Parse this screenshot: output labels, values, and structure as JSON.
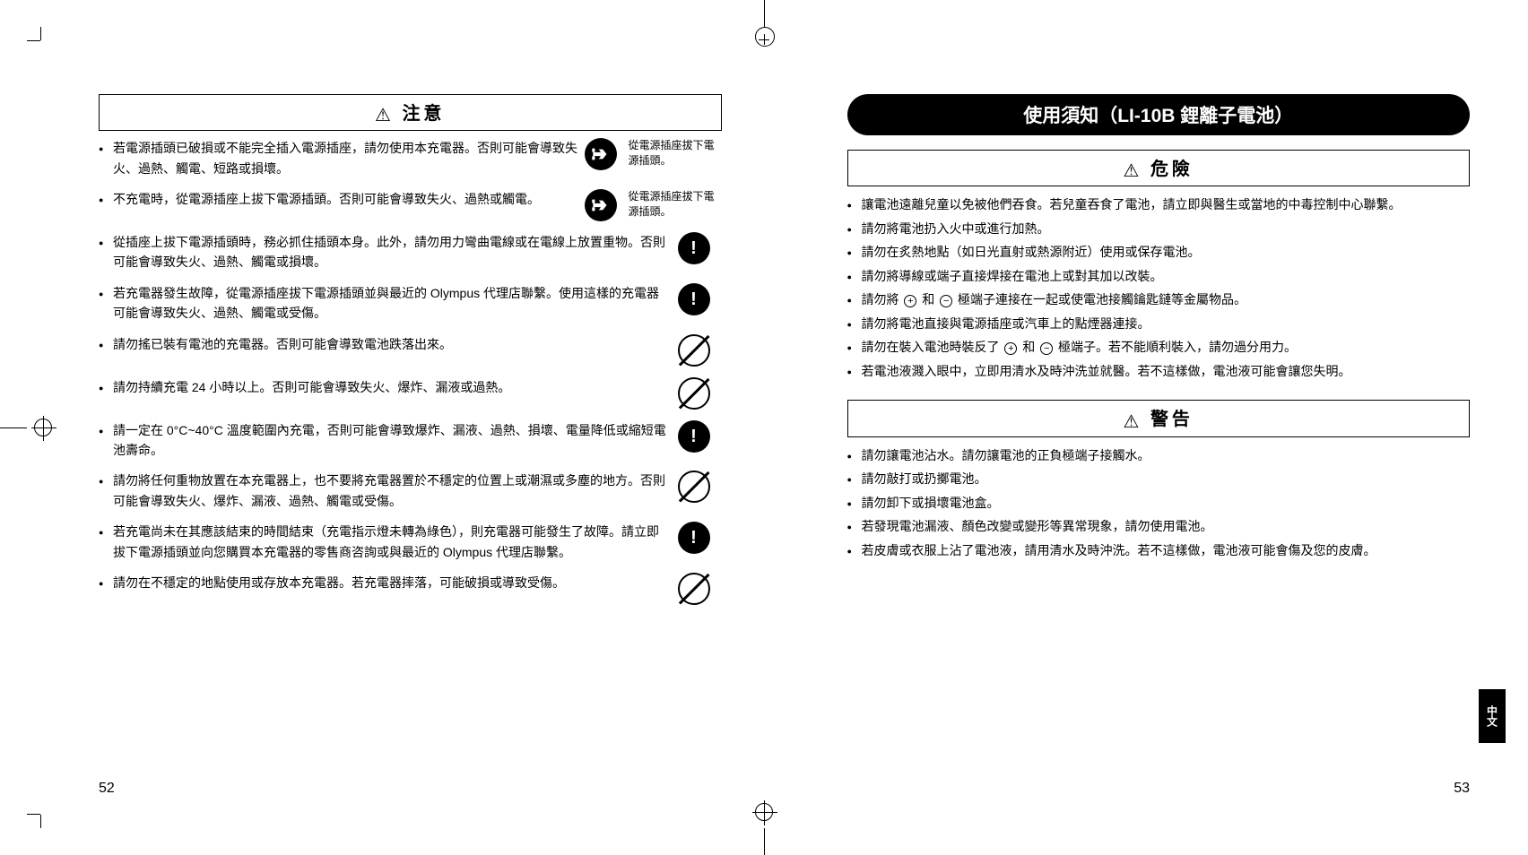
{
  "left_page": {
    "caution_title": "注意",
    "items": [
      {
        "text": "若電源插頭已破損或不能完全插入電源插座，請勿使用本充電器。否則可能會導致失火、過熱、觸電、短路或損壞。",
        "icon": "unplug",
        "icon_text": "從電源插座拔下電源插頭。"
      },
      {
        "text": "不充電時，從電源插座上拔下電源插頭。否則可能會導致失火、過熱或觸電。",
        "icon": "unplug",
        "icon_text": "從電源插座拔下電源插頭。"
      },
      {
        "text": "從插座上拔下電源插頭時，務必抓住插頭本身。此外，請勿用力彎曲電線或在電線上放置重物。否則可能會導致失火、過熱、觸電或損壞。",
        "icon": "solid_bang",
        "icon_text": ""
      },
      {
        "text": "若充電器發生故障，從電源插座拔下電源插頭並與最近的 Olympus 代理店聯繫。使用這樣的充電器可能會導致失火、過熱、觸電或受傷。",
        "icon": "solid_bang",
        "icon_text": ""
      },
      {
        "text": "請勿搖已裝有電池的充電器。否則可能會導致電池跌落出來。",
        "icon": "prohibit",
        "icon_text": ""
      },
      {
        "text": "請勿持續充電 24 小時以上。否則可能會導致失火、爆炸、漏液或過熱。",
        "icon": "prohibit",
        "icon_text": ""
      },
      {
        "text": "請一定在 0°C~40°C 溫度範圍內充電，否則可能會導致爆炸、漏液、過熱、損壞、電量降低或縮短電池壽命。",
        "icon": "solid_bang",
        "icon_text": ""
      },
      {
        "text": "請勿將任何重物放置在本充電器上，也不要將充電器置於不穩定的位置上或潮濕或多塵的地方。否則可能會導致失火、爆炸、漏液、過熱、觸電或受傷。",
        "icon": "prohibit",
        "icon_text": ""
      },
      {
        "text": "若充電尚未在其應該結束的時間結束（充電指示燈未轉為綠色），則充電器可能發生了故障。請立即拔下電源插頭並向您購買本充電器的零售商咨詢或與最近的 Olympus 代理店聯繫。",
        "icon": "solid_bang",
        "icon_text": ""
      },
      {
        "text": "請勿在不穩定的地點使用或存放本充電器。若充電器摔落，可能破損或導致受傷。",
        "icon": "prohibit",
        "icon_text": ""
      }
    ],
    "page_num": "52"
  },
  "right_page": {
    "header": "使用須知（LI-10B 鋰離子電池）",
    "danger_title": "危險",
    "danger_items": [
      "讓電池遠離兒童以免被他們吞食。若兒童吞食了電池，請立即與醫生或當地的中毒控制中心聯繫。",
      "請勿將電池扔入火中或進行加熱。",
      "請勿在炙熱地點（如日光直射或熱源附近）使用或保存電池。",
      "請勿將導線或端子直接焊接在電池上或對其加以改裝。",
      "請勿將 ⊕ 和 ⊖ 極端子連接在一起或使電池接觸鑰匙鏈等金屬物品。",
      "請勿將電池直接與電源插座或汽車上的點煙器連接。",
      "請勿在裝入電池時裝反了 ⊕ 和 ⊖ 極端子。若不能順利裝入，請勿過分用力。",
      "若電池液濺入眼中，立即用清水及時沖洗並就醫。若不這樣做，電池液可能會讓您失明。"
    ],
    "warning_title": "警告",
    "warning_items": [
      "請勿讓電池沾水。請勿讓電池的正負極端子接觸水。",
      "請勿敲打或扔擲電池。",
      "請勿卸下或損壞電池盒。",
      "若發現電池漏液、顏色改變或變形等異常現象，請勿使用電池。",
      "若皮膚或衣服上沾了電池液，請用清水及時沖洗。若不這樣做，電池液可能會傷及您的皮膚。"
    ],
    "page_num": "53",
    "tab_label": "中文"
  }
}
